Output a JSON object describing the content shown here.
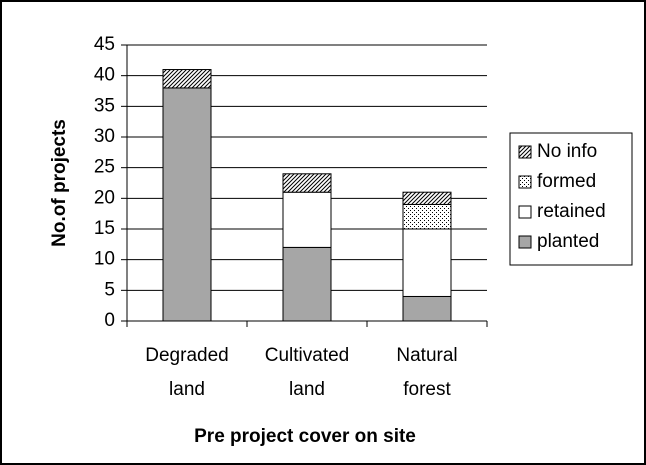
{
  "chart_data": {
    "type": "stacked-bar",
    "xlabel": "Pre project cover on site",
    "ylabel": "No.of projects",
    "categories": [
      "Degraded land",
      "Cultivated land",
      "Natural forest"
    ],
    "series": [
      {
        "name": "planted",
        "color": "#a6a6a6",
        "values": [
          38,
          12,
          4
        ]
      },
      {
        "name": "retained",
        "color": "#ffffff",
        "values": [
          0,
          9,
          11
        ]
      },
      {
        "name": "formed",
        "color": "#000000",
        "hatch": "dots",
        "values": [
          0,
          0,
          4
        ]
      },
      {
        "name": "No info",
        "color": "#000000",
        "hatch": "diagonal",
        "values": [
          3,
          3,
          2
        ]
      }
    ],
    "ylim": [
      0,
      45
    ],
    "yticks": [
      0,
      5,
      10,
      15,
      20,
      25,
      30,
      35,
      40,
      45
    ],
    "grid": true,
    "legend": "right"
  }
}
